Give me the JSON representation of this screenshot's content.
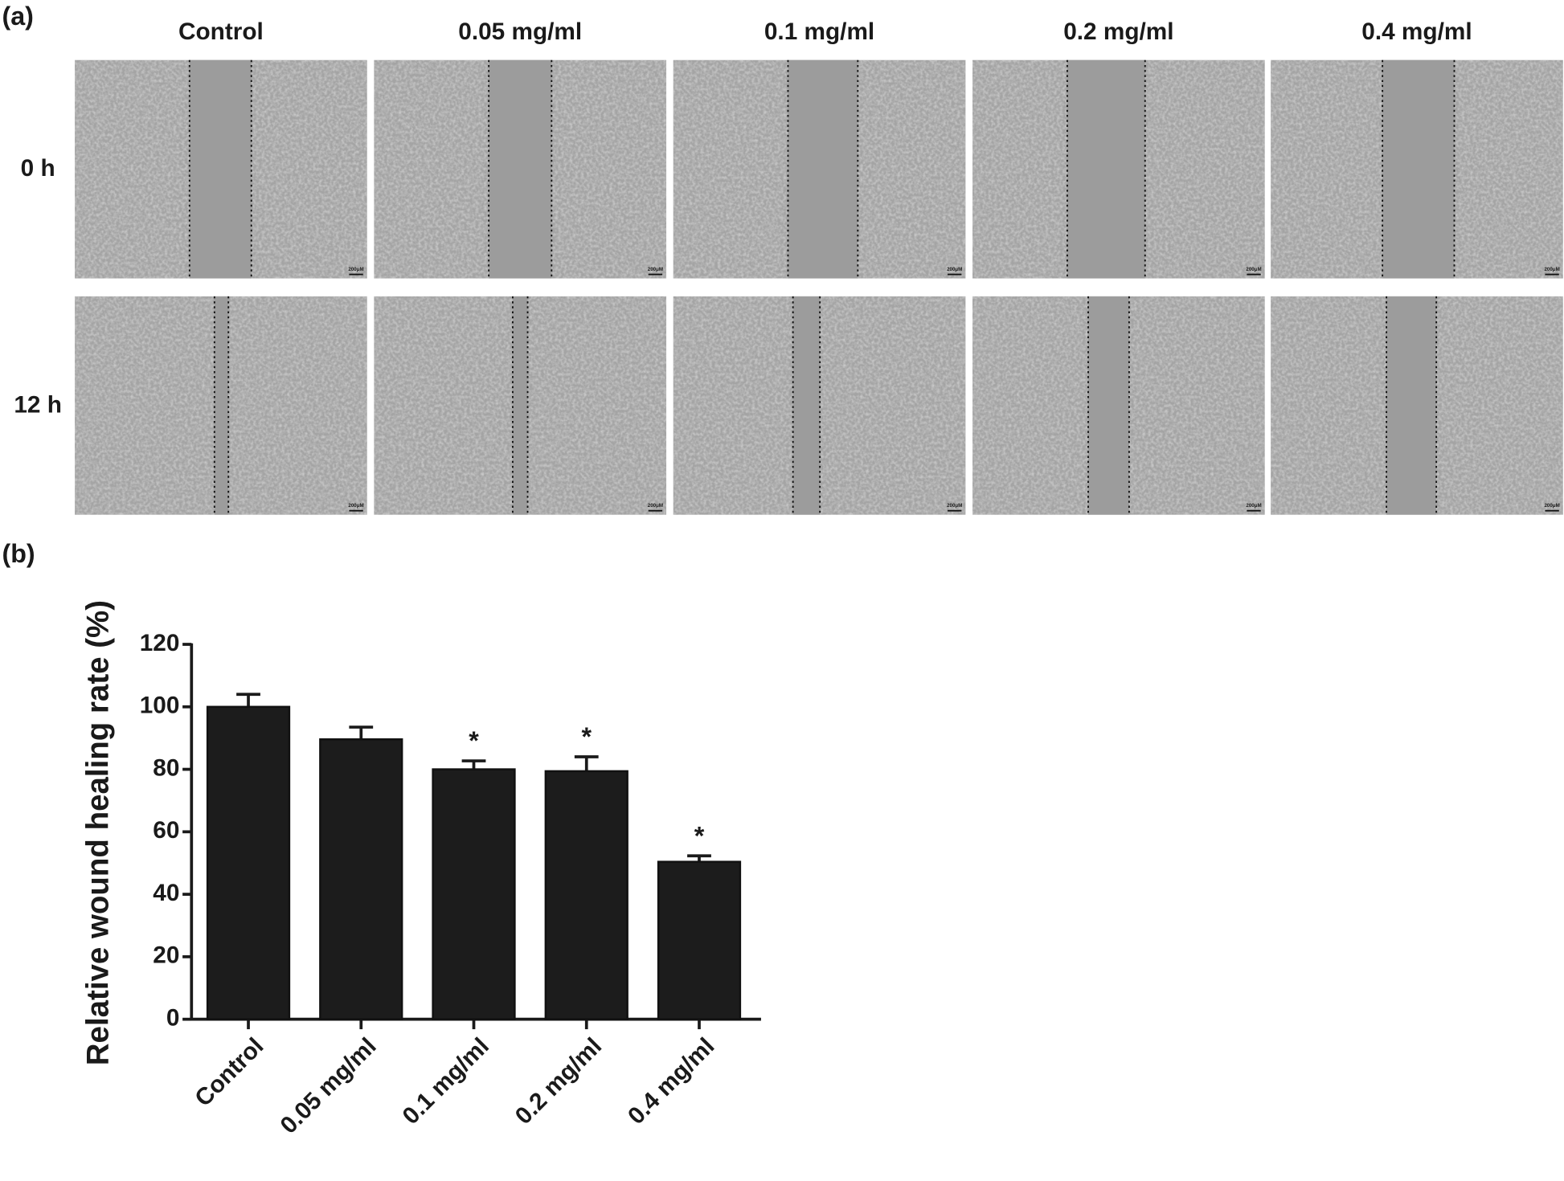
{
  "panel_a": {
    "label": "(a)",
    "columns": [
      "Control",
      "0.05 mg/ml",
      "0.1 mg/ml",
      "0.2 mg/ml",
      "0.4 mg/ml"
    ],
    "rows": [
      "0 h",
      "12 h"
    ],
    "scale_bar": "200μM"
  },
  "chart_data": {
    "type": "bar",
    "panel_label": "(b)",
    "ylabel": "Relative wound healing rate (%)",
    "categories": [
      "Control",
      "0.05 mg/ml",
      "0.1 mg/ml",
      "0.2 mg/ml",
      "0.4 mg/ml"
    ],
    "values": [
      100,
      89.6,
      80,
      79.4,
      50.4
    ],
    "errors": [
      4,
      3.9,
      2.7,
      4.6,
      1.9
    ],
    "annotations": [
      null,
      null,
      "*",
      "*",
      "*"
    ],
    "color": "#1c1c1c",
    "ylim": [
      0,
      120
    ],
    "yticks": [
      0,
      20,
      40,
      60,
      80,
      100,
      120
    ],
    "grid": false
  }
}
